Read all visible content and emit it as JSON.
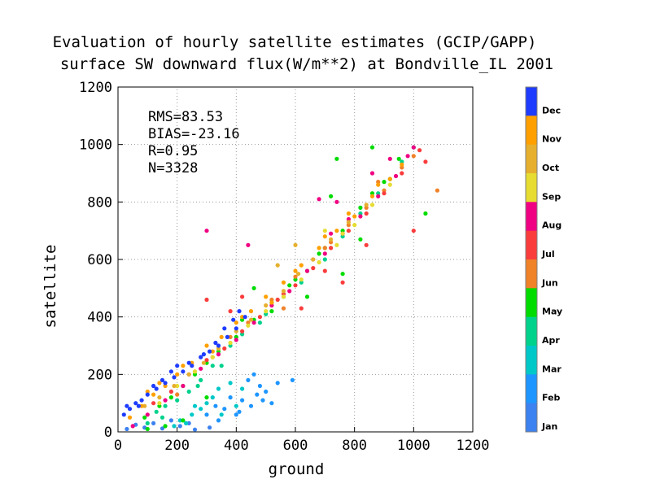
{
  "chart_data": {
    "type": "scatter",
    "title_line1": "Evaluation of hourly satellite estimates (GCIP/GAPP)",
    "title_line2": "surface SW downward flux(W/m**2) at Bondville_IL 2001",
    "xlabel": "ground",
    "ylabel": "satellite",
    "xlim": [
      0,
      1200
    ],
    "ylim": [
      0,
      1200
    ],
    "x_ticks": [
      "0",
      "200",
      "400",
      "600",
      "800",
      "1000",
      "1200"
    ],
    "y_ticks": [
      "0",
      "200",
      "400",
      "600",
      "800",
      "1000",
      "1200"
    ],
    "grid": true,
    "stats": {
      "rms": "RMS=83.53",
      "bias": "BIAS=-23.16",
      "r": "R=0.95",
      "n": "N=3328"
    },
    "colorbar": {
      "labels": [
        "Dec",
        "Nov",
        "Oct",
        "Sep",
        "Aug",
        "Jul",
        "Jun",
        "May",
        "Apr",
        "Mar",
        "Feb",
        "Jan"
      ],
      "colors": [
        "#1e3cff",
        "#ffa000",
        "#e6af2d",
        "#e6dc32",
        "#f00082",
        "#fa3c3c",
        "#f08228",
        "#00dc00",
        "#00d28c",
        "#00c8c8",
        "#1e96ff",
        "#3c82f0"
      ]
    },
    "series_by_month": [
      {
        "name": "Jan",
        "points": [
          [
            30,
            10
          ],
          [
            60,
            25
          ],
          [
            90,
            15
          ],
          [
            120,
            30
          ],
          [
            150,
            12
          ],
          [
            210,
            20
          ],
          [
            260,
            8
          ],
          [
            310,
            15
          ],
          [
            180,
            40
          ],
          [
            240,
            30
          ]
        ]
      },
      {
        "name": "Feb",
        "points": [
          [
            380,
            120
          ],
          [
            420,
            110
          ],
          [
            450,
            90
          ],
          [
            480,
            160
          ],
          [
            500,
            140
          ],
          [
            520,
            100
          ],
          [
            440,
            180
          ],
          [
            460,
            200
          ],
          [
            400,
            60
          ],
          [
            360,
            80
          ],
          [
            410,
            70
          ],
          [
            470,
            130
          ],
          [
            540,
            170
          ],
          [
            590,
            180
          ],
          [
            300,
            60
          ],
          [
            340,
            40
          ],
          [
            330,
            90
          ],
          [
            490,
            110
          ]
        ]
      },
      {
        "name": "Mar",
        "points": [
          [
            230,
            30
          ],
          [
            250,
            60
          ],
          [
            280,
            80
          ],
          [
            300,
            100
          ],
          [
            320,
            120
          ],
          [
            340,
            150
          ],
          [
            190,
            20
          ],
          [
            210,
            40
          ],
          [
            260,
            90
          ],
          [
            350,
            60
          ],
          [
            400,
            90
          ],
          [
            420,
            150
          ],
          [
            380,
            170
          ]
        ]
      },
      {
        "name": "Apr",
        "points": [
          [
            100,
            30
          ],
          [
            130,
            70
          ],
          [
            160,
            90
          ],
          [
            200,
            110
          ],
          [
            240,
            140
          ],
          [
            280,
            180
          ],
          [
            320,
            230
          ],
          [
            380,
            300
          ],
          [
            420,
            340
          ],
          [
            500,
            410
          ],
          [
            560,
            470
          ],
          [
            620,
            520
          ],
          [
            700,
            600
          ],
          [
            760,
            680
          ],
          [
            820,
            760
          ],
          [
            880,
            830
          ],
          [
            920,
            880
          ],
          [
            960,
            940
          ],
          [
            1000,
            990
          ],
          [
            150,
            50
          ],
          [
            270,
            160
          ],
          [
            350,
            230
          ],
          [
            480,
            380
          ]
        ]
      },
      {
        "name": "May",
        "points": [
          [
            90,
            50
          ],
          [
            140,
            90
          ],
          [
            180,
            120
          ],
          [
            220,
            160
          ],
          [
            260,
            200
          ],
          [
            300,
            240
          ],
          [
            340,
            280
          ],
          [
            400,
            330
          ],
          [
            460,
            390
          ],
          [
            520,
            450
          ],
          [
            580,
            510
          ],
          [
            640,
            560
          ],
          [
            700,
            640
          ],
          [
            760,
            700
          ],
          [
            820,
            780
          ],
          [
            860,
            830
          ],
          [
            900,
            870
          ],
          [
            950,
            950
          ],
          [
            420,
            390
          ],
          [
            300,
            120
          ],
          [
            460,
            500
          ],
          [
            520,
            420
          ],
          [
            640,
            470
          ],
          [
            820,
            670
          ],
          [
            720,
            820
          ],
          [
            740,
            950
          ],
          [
            860,
            990
          ],
          [
            1040,
            760
          ],
          [
            760,
            550
          ],
          [
            100,
            10
          ],
          [
            160,
            20
          ],
          [
            220,
            40
          ],
          [
            600,
            530
          ],
          [
            680,
            620
          ]
        ]
      },
      {
        "name": "Jun",
        "points": [
          [
            200,
            130
          ],
          [
            260,
            210
          ],
          [
            320,
            260
          ],
          [
            380,
            330
          ],
          [
            440,
            380
          ],
          [
            520,
            460
          ],
          [
            600,
            540
          ],
          [
            660,
            600
          ],
          [
            720,
            660
          ],
          [
            780,
            720
          ],
          [
            840,
            780
          ],
          [
            900,
            840
          ],
          [
            960,
            920
          ],
          [
            1000,
            960
          ],
          [
            1080,
            840
          ],
          [
            560,
            430
          ],
          [
            700,
            640
          ],
          [
            880,
            870
          ]
        ]
      },
      {
        "name": "Jul",
        "points": [
          [
            120,
            100
          ],
          [
            180,
            140
          ],
          [
            240,
            200
          ],
          [
            300,
            250
          ],
          [
            360,
            290
          ],
          [
            420,
            350
          ],
          [
            480,
            400
          ],
          [
            540,
            460
          ],
          [
            600,
            510
          ],
          [
            660,
            570
          ],
          [
            720,
            640
          ],
          [
            780,
            700
          ],
          [
            840,
            760
          ],
          [
            900,
            830
          ],
          [
            960,
            900
          ],
          [
            1020,
            980
          ],
          [
            1040,
            940
          ],
          [
            760,
            520
          ],
          [
            620,
            430
          ],
          [
            700,
            560
          ],
          [
            1000,
            700
          ],
          [
            840,
            650
          ],
          [
            560,
            480
          ],
          [
            300,
            460
          ],
          [
            420,
            470
          ],
          [
            380,
            420
          ]
        ]
      },
      {
        "name": "Aug",
        "points": [
          [
            50,
            20
          ],
          [
            100,
            60
          ],
          [
            160,
            110
          ],
          [
            220,
            160
          ],
          [
            280,
            220
          ],
          [
            340,
            270
          ],
          [
            400,
            320
          ],
          [
            460,
            380
          ],
          [
            520,
            440
          ],
          [
            580,
            490
          ],
          [
            640,
            560
          ],
          [
            700,
            620
          ],
          [
            760,
            690
          ],
          [
            820,
            750
          ],
          [
            880,
            820
          ],
          [
            940,
            890
          ],
          [
            980,
            960
          ],
          [
            1000,
            990
          ],
          [
            860,
            900
          ],
          [
            920,
            950
          ],
          [
            300,
            700
          ],
          [
            440,
            650
          ],
          [
            780,
            740
          ],
          [
            720,
            690
          ],
          [
            680,
            810
          ],
          [
            740,
            800
          ]
        ]
      },
      {
        "name": "Sep",
        "points": [
          [
            140,
            100
          ],
          [
            200,
            160
          ],
          [
            260,
            210
          ],
          [
            320,
            260
          ],
          [
            380,
            310
          ],
          [
            440,
            370
          ],
          [
            500,
            420
          ],
          [
            560,
            470
          ],
          [
            620,
            530
          ],
          [
            680,
            590
          ],
          [
            740,
            650
          ],
          [
            800,
            720
          ],
          [
            860,
            790
          ],
          [
            920,
            860
          ],
          [
            700,
            700
          ],
          [
            760,
            690
          ]
        ]
      },
      {
        "name": "Oct",
        "points": [
          [
            90,
            90
          ],
          [
            140,
            120
          ],
          [
            190,
            160
          ],
          [
            240,
            200
          ],
          [
            290,
            240
          ],
          [
            340,
            290
          ],
          [
            400,
            350
          ],
          [
            450,
            390
          ],
          [
            500,
            440
          ],
          [
            560,
            490
          ],
          [
            610,
            550
          ],
          [
            660,
            600
          ],
          [
            720,
            670
          ],
          [
            780,
            730
          ],
          [
            840,
            790
          ],
          [
            600,
            650
          ],
          [
            540,
            580
          ]
        ]
      },
      {
        "name": "Nov",
        "points": [
          [
            40,
            50
          ],
          [
            80,
            90
          ],
          [
            120,
            130
          ],
          [
            160,
            160
          ],
          [
            200,
            200
          ],
          [
            250,
            240
          ],
          [
            300,
            300
          ],
          [
            350,
            330
          ],
          [
            400,
            380
          ],
          [
            450,
            420
          ],
          [
            500,
            470
          ],
          [
            560,
            520
          ],
          [
            620,
            580
          ],
          [
            680,
            640
          ],
          [
            740,
            700
          ],
          [
            800,
            750
          ],
          [
            860,
            820
          ],
          [
            920,
            880
          ],
          [
            960,
            930
          ],
          [
            100,
            140
          ],
          [
            140,
            170
          ],
          [
            220,
            230
          ],
          [
            320,
            280
          ],
          [
            420,
            400
          ],
          [
            520,
            450
          ],
          [
            600,
            560
          ],
          [
            700,
            680
          ],
          [
            780,
            760
          ],
          [
            880,
            860
          ]
        ]
      },
      {
        "name": "Dec",
        "points": [
          [
            20,
            60
          ],
          [
            40,
            80
          ],
          [
            60,
            100
          ],
          [
            80,
            110
          ],
          [
            100,
            130
          ],
          [
            130,
            150
          ],
          [
            160,
            170
          ],
          [
            190,
            190
          ],
          [
            220,
            210
          ],
          [
            250,
            230
          ],
          [
            280,
            260
          ],
          [
            310,
            280
          ],
          [
            340,
            300
          ],
          [
            370,
            330
          ],
          [
            400,
            360
          ],
          [
            430,
            400
          ],
          [
            30,
            90
          ],
          [
            70,
            90
          ],
          [
            120,
            160
          ],
          [
            180,
            210
          ],
          [
            240,
            240
          ],
          [
            290,
            270
          ],
          [
            330,
            310
          ],
          [
            360,
            360
          ],
          [
            390,
            390
          ],
          [
            410,
            420
          ],
          [
            200,
            230
          ],
          [
            150,
            180
          ]
        ]
      }
    ]
  }
}
